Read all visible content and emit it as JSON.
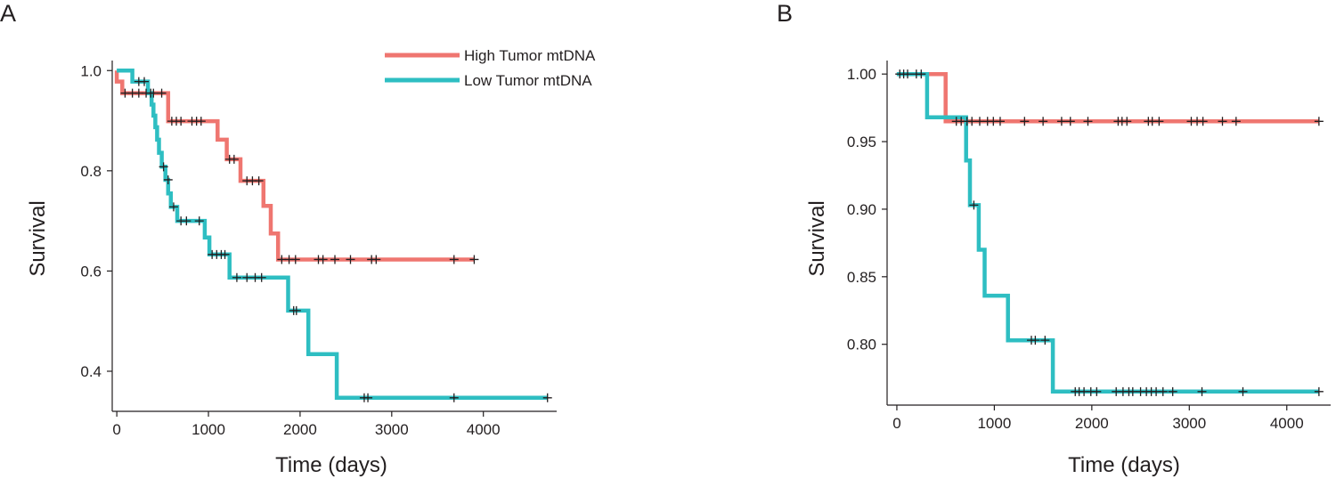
{
  "figure": {
    "legend": [
      {
        "label": "High Tumor mtDNA",
        "color": "#ef7670"
      },
      {
        "label": "Low Tumor mtDNA",
        "color": "#2ebec2"
      }
    ]
  },
  "chart_data": [
    {
      "type": "line",
      "panel_label": "A",
      "xlabel": "Time (days)",
      "ylabel": "Survival",
      "xlim": [
        -50,
        4800
      ],
      "ylim": [
        0.32,
        1.02
      ],
      "xticks": [
        0,
        1000,
        2000,
        3000,
        4000
      ],
      "xtick_labels": [
        "0",
        "1000",
        "2000",
        "3000",
        "4000"
      ],
      "yticks": [
        0.4,
        0.6,
        0.8,
        1.0
      ],
      "ytick_labels": [
        "0.4",
        "0.6",
        "0.8",
        "1.0"
      ],
      "series": [
        {
          "name": "High Tumor mtDNA",
          "color": "#ef7670",
          "steps": [
            [
              0,
              1.0
            ],
            [
              0,
              0.978
            ],
            [
              60,
              0.978
            ],
            [
              60,
              0.955
            ],
            [
              560,
              0.955
            ],
            [
              560,
              0.899
            ],
            [
              1100,
              0.899
            ],
            [
              1100,
              0.862
            ],
            [
              1200,
              0.862
            ],
            [
              1200,
              0.823
            ],
            [
              1350,
              0.823
            ],
            [
              1350,
              0.78
            ],
            [
              1600,
              0.78
            ],
            [
              1600,
              0.73
            ],
            [
              1680,
              0.73
            ],
            [
              1680,
              0.675
            ],
            [
              1760,
              0.675
            ],
            [
              1760,
              0.623
            ],
            [
              3900,
              0.623
            ]
          ],
          "censored": [
            [
              90,
              0.955
            ],
            [
              170,
              0.955
            ],
            [
              240,
              0.955
            ],
            [
              320,
              0.955
            ],
            [
              400,
              0.955
            ],
            [
              490,
              0.955
            ],
            [
              600,
              0.899
            ],
            [
              650,
              0.899
            ],
            [
              700,
              0.899
            ],
            [
              820,
              0.899
            ],
            [
              870,
              0.899
            ],
            [
              920,
              0.899
            ],
            [
              1230,
              0.823
            ],
            [
              1280,
              0.823
            ],
            [
              1420,
              0.78
            ],
            [
              1480,
              0.78
            ],
            [
              1550,
              0.78
            ],
            [
              1800,
              0.623
            ],
            [
              1880,
              0.623
            ],
            [
              1950,
              0.623
            ],
            [
              2200,
              0.623
            ],
            [
              2250,
              0.623
            ],
            [
              2380,
              0.623
            ],
            [
              2550,
              0.623
            ],
            [
              2780,
              0.623
            ],
            [
              2830,
              0.623
            ],
            [
              3680,
              0.623
            ],
            [
              3900,
              0.623
            ]
          ]
        },
        {
          "name": "Low Tumor mtDNA",
          "color": "#2ebec2",
          "steps": [
            [
              0,
              1.0
            ],
            [
              80,
              1.0
            ],
            [
              80,
              1.0
            ],
            [
              170,
              1.0
            ],
            [
              170,
              0.978
            ],
            [
              340,
              0.978
            ],
            [
              340,
              0.955
            ],
            [
              380,
              0.955
            ],
            [
              380,
              0.932
            ],
            [
              400,
              0.932
            ],
            [
              400,
              0.91
            ],
            [
              420,
              0.91
            ],
            [
              420,
              0.887
            ],
            [
              440,
              0.887
            ],
            [
              440,
              0.862
            ],
            [
              460,
              0.862
            ],
            [
              460,
              0.836
            ],
            [
              490,
              0.836
            ],
            [
              490,
              0.808
            ],
            [
              530,
              0.808
            ],
            [
              530,
              0.782
            ],
            [
              560,
              0.782
            ],
            [
              560,
              0.755
            ],
            [
              590,
              0.755
            ],
            [
              590,
              0.728
            ],
            [
              660,
              0.728
            ],
            [
              660,
              0.7
            ],
            [
              960,
              0.7
            ],
            [
              960,
              0.667
            ],
            [
              1010,
              0.667
            ],
            [
              1010,
              0.633
            ],
            [
              1230,
              0.633
            ],
            [
              1230,
              0.587
            ],
            [
              1870,
              0.587
            ],
            [
              1870,
              0.521
            ],
            [
              2090,
              0.521
            ],
            [
              2090,
              0.434
            ],
            [
              2400,
              0.434
            ],
            [
              2400,
              0.347
            ],
            [
              4700,
              0.347
            ]
          ],
          "censored": [
            [
              240,
              0.978
            ],
            [
              300,
              0.978
            ],
            [
              370,
              0.955
            ],
            [
              510,
              0.808
            ],
            [
              560,
              0.782
            ],
            [
              620,
              0.728
            ],
            [
              700,
              0.7
            ],
            [
              760,
              0.7
            ],
            [
              900,
              0.7
            ],
            [
              1040,
              0.633
            ],
            [
              1090,
              0.633
            ],
            [
              1140,
              0.633
            ],
            [
              1180,
              0.633
            ],
            [
              1310,
              0.587
            ],
            [
              1420,
              0.587
            ],
            [
              1510,
              0.587
            ],
            [
              1580,
              0.587
            ],
            [
              1930,
              0.521
            ],
            [
              1960,
              0.521
            ],
            [
              2700,
              0.347
            ],
            [
              2740,
              0.347
            ],
            [
              3680,
              0.347
            ],
            [
              4700,
              0.347
            ]
          ]
        }
      ]
    },
    {
      "type": "line",
      "panel_label": "B",
      "xlabel": "Time (days)",
      "ylabel": "Survival",
      "xlim": [
        -100,
        4450
      ],
      "ylim": [
        0.755,
        1.01
      ],
      "xticks": [
        0,
        1000,
        2000,
        3000,
        4000
      ],
      "xtick_labels": [
        "0",
        "1000",
        "2000",
        "3000",
        "4000"
      ],
      "yticks": [
        0.8,
        0.85,
        0.9,
        0.95,
        1.0
      ],
      "ytick_labels": [
        "0.80",
        "0.85",
        "0.90",
        "0.95",
        "1.00"
      ],
      "series": [
        {
          "name": "High Tumor mtDNA",
          "color": "#ef7670",
          "steps": [
            [
              0,
              1.0
            ],
            [
              500,
              1.0
            ],
            [
              500,
              0.965
            ],
            [
              4330,
              0.965
            ]
          ],
          "censored": [
            [
              610,
              0.965
            ],
            [
              660,
              0.965
            ],
            [
              720,
              0.965
            ],
            [
              770,
              0.965
            ],
            [
              850,
              0.965
            ],
            [
              930,
              0.965
            ],
            [
              990,
              0.965
            ],
            [
              1060,
              0.965
            ],
            [
              1310,
              0.965
            ],
            [
              1500,
              0.965
            ],
            [
              1690,
              0.965
            ],
            [
              1780,
              0.965
            ],
            [
              1960,
              0.965
            ],
            [
              2270,
              0.965
            ],
            [
              2310,
              0.965
            ],
            [
              2360,
              0.965
            ],
            [
              2580,
              0.965
            ],
            [
              2620,
              0.965
            ],
            [
              2690,
              0.965
            ],
            [
              3020,
              0.965
            ],
            [
              3080,
              0.965
            ],
            [
              3140,
              0.965
            ],
            [
              3340,
              0.965
            ],
            [
              3480,
              0.965
            ],
            [
              4330,
              0.965
            ]
          ]
        },
        {
          "name": "Low Tumor mtDNA",
          "color": "#2ebec2",
          "steps": [
            [
              0,
              1.0
            ],
            [
              310,
              1.0
            ],
            [
              310,
              0.968
            ],
            [
              710,
              0.968
            ],
            [
              710,
              0.936
            ],
            [
              750,
              0.936
            ],
            [
              750,
              0.903
            ],
            [
              840,
              0.903
            ],
            [
              840,
              0.87
            ],
            [
              900,
              0.87
            ],
            [
              900,
              0.836
            ],
            [
              1140,
              0.836
            ],
            [
              1140,
              0.803
            ],
            [
              1600,
              0.803
            ],
            [
              1600,
              0.765
            ],
            [
              4330,
              0.765
            ]
          ],
          "censored": [
            [
              30,
              1.0
            ],
            [
              70,
              1.0
            ],
            [
              110,
              1.0
            ],
            [
              200,
              1.0
            ],
            [
              250,
              1.0
            ],
            [
              790,
              0.903
            ],
            [
              1380,
              0.803
            ],
            [
              1420,
              0.803
            ],
            [
              1520,
              0.803
            ],
            [
              1830,
              0.765
            ],
            [
              1870,
              0.765
            ],
            [
              1920,
              0.765
            ],
            [
              1990,
              0.765
            ],
            [
              2050,
              0.765
            ],
            [
              2250,
              0.765
            ],
            [
              2320,
              0.765
            ],
            [
              2380,
              0.765
            ],
            [
              2420,
              0.765
            ],
            [
              2500,
              0.765
            ],
            [
              2560,
              0.765
            ],
            [
              2610,
              0.765
            ],
            [
              2660,
              0.765
            ],
            [
              2730,
              0.765
            ],
            [
              2830,
              0.765
            ],
            [
              3130,
              0.765
            ],
            [
              3550,
              0.765
            ],
            [
              4330,
              0.765
            ]
          ]
        }
      ]
    }
  ]
}
